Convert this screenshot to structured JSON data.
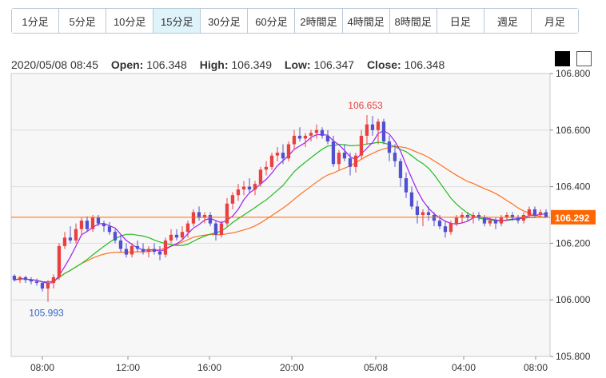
{
  "timeframes": [
    {
      "label": "1分足",
      "active": false
    },
    {
      "label": "5分足",
      "active": false
    },
    {
      "label": "10分足",
      "active": false
    },
    {
      "label": "15分足",
      "active": true
    },
    {
      "label": "30分足",
      "active": false
    },
    {
      "label": "60分足",
      "active": false
    },
    {
      "label": "2時間足",
      "active": false
    },
    {
      "label": "4時間足",
      "active": false
    },
    {
      "label": "8時間足",
      "active": false
    },
    {
      "label": "日足",
      "active": false
    },
    {
      "label": "週足",
      "active": false
    },
    {
      "label": "月足",
      "active": false
    }
  ],
  "ohlc": {
    "datetime": "2020/05/08 08:45",
    "open_label": "Open:",
    "open": "106.348",
    "high_label": "High:",
    "high": "106.349",
    "low_label": "Low:",
    "low": "106.347",
    "close_label": "Close:",
    "close": "106.348"
  },
  "theme": {
    "dark_label": "dark theme",
    "light_label": "light theme"
  },
  "colors": {
    "up": "#e84040",
    "down": "#5050d0",
    "ma_short": "#a020f0",
    "ma_mid": "#22bb22",
    "ma_long": "#ff7020",
    "price_line": "#ff6600",
    "price_label_bg": "#ff6600",
    "max_label": "#e84040",
    "min_label": "#3366cc"
  },
  "chart_data": {
    "type": "candlestick",
    "ylim": [
      105.8,
      106.8
    ],
    "y_ticks": [
      "106.800",
      "106.600",
      "106.400",
      "106.200",
      "106.000",
      "105.800"
    ],
    "x_ticks": [
      "08:00",
      "12:00",
      "16:00",
      "20:00",
      "05/08",
      "04:00",
      "08:00"
    ],
    "current_price": "106.292",
    "max_label": "106.653",
    "min_label": "105.993",
    "candles": [
      [
        106.085,
        106.09,
        106.065,
        106.07
      ],
      [
        106.07,
        106.085,
        106.06,
        106.08
      ],
      [
        106.08,
        106.085,
        106.06,
        106.07
      ],
      [
        106.07,
        106.08,
        106.055,
        106.065
      ],
      [
        106.065,
        106.075,
        106.05,
        106.06
      ],
      [
        106.06,
        106.065,
        106.03,
        106.04
      ],
      [
        106.04,
        106.07,
        105.993,
        106.06
      ],
      [
        106.06,
        106.09,
        106.04,
        106.08
      ],
      [
        106.08,
        106.2,
        106.07,
        106.19
      ],
      [
        106.19,
        106.24,
        106.18,
        106.22
      ],
      [
        106.22,
        106.26,
        106.2,
        106.21
      ],
      [
        106.21,
        106.27,
        106.2,
        106.25
      ],
      [
        106.25,
        106.29,
        106.23,
        106.28
      ],
      [
        106.28,
        106.295,
        106.24,
        106.25
      ],
      [
        106.25,
        106.3,
        106.24,
        106.29
      ],
      [
        106.29,
        106.3,
        106.26,
        106.27
      ],
      [
        106.27,
        106.28,
        106.24,
        106.26
      ],
      [
        106.26,
        106.275,
        106.23,
        106.24
      ],
      [
        106.24,
        106.25,
        106.2,
        106.21
      ],
      [
        106.21,
        106.23,
        106.17,
        106.18
      ],
      [
        106.18,
        106.2,
        106.15,
        106.16
      ],
      [
        106.16,
        106.2,
        106.15,
        106.19
      ],
      [
        106.19,
        106.21,
        106.17,
        106.18
      ],
      [
        106.18,
        106.2,
        106.16,
        106.17
      ],
      [
        106.17,
        106.19,
        106.15,
        106.18
      ],
      [
        106.18,
        106.2,
        106.16,
        106.17
      ],
      [
        106.17,
        106.19,
        106.14,
        106.16
      ],
      [
        106.16,
        106.22,
        106.15,
        106.21
      ],
      [
        106.21,
        106.25,
        106.2,
        106.23
      ],
      [
        106.23,
        106.25,
        106.21,
        106.22
      ],
      [
        106.22,
        106.26,
        106.21,
        106.24
      ],
      [
        106.24,
        106.28,
        106.22,
        106.27
      ],
      [
        106.27,
        106.32,
        106.26,
        106.31
      ],
      [
        106.31,
        106.33,
        106.28,
        106.29
      ],
      [
        106.29,
        106.31,
        106.27,
        106.3
      ],
      [
        106.3,
        106.31,
        106.26,
        106.27
      ],
      [
        106.27,
        106.28,
        106.21,
        106.23
      ],
      [
        106.23,
        106.28,
        106.22,
        106.27
      ],
      [
        106.27,
        106.36,
        106.26,
        106.34
      ],
      [
        106.34,
        106.38,
        106.32,
        106.37
      ],
      [
        106.37,
        106.41,
        106.35,
        106.39
      ],
      [
        106.39,
        106.42,
        106.37,
        106.4
      ],
      [
        106.4,
        106.43,
        106.38,
        106.39
      ],
      [
        106.39,
        106.42,
        106.37,
        106.41
      ],
      [
        106.41,
        106.47,
        106.4,
        106.46
      ],
      [
        106.46,
        106.49,
        106.44,
        106.47
      ],
      [
        106.47,
        106.52,
        106.46,
        106.51
      ],
      [
        106.51,
        106.54,
        106.49,
        106.52
      ],
      [
        106.52,
        106.55,
        106.48,
        106.5
      ],
      [
        106.5,
        106.56,
        106.49,
        106.55
      ],
      [
        106.55,
        106.6,
        106.53,
        106.58
      ],
      [
        106.58,
        106.61,
        106.56,
        106.57
      ],
      [
        106.57,
        106.59,
        106.54,
        106.58
      ],
      [
        106.58,
        106.6,
        106.56,
        106.59
      ],
      [
        106.59,
        106.62,
        106.57,
        106.6
      ],
      [
        106.6,
        106.61,
        106.57,
        106.58
      ],
      [
        106.58,
        106.6,
        106.55,
        106.56
      ],
      [
        106.56,
        106.58,
        106.47,
        106.48
      ],
      [
        106.48,
        106.53,
        106.46,
        106.52
      ],
      [
        106.52,
        106.55,
        106.49,
        106.5
      ],
      [
        106.5,
        106.52,
        106.44,
        106.47
      ],
      [
        106.47,
        106.52,
        106.45,
        106.51
      ],
      [
        106.51,
        106.6,
        106.5,
        106.58
      ],
      [
        106.58,
        106.653,
        106.55,
        106.62
      ],
      [
        106.62,
        106.65,
        106.58,
        106.6
      ],
      [
        106.6,
        106.64,
        106.55,
        106.63
      ],
      [
        106.63,
        106.64,
        106.55,
        106.56
      ],
      [
        106.56,
        106.58,
        106.49,
        106.52
      ],
      [
        106.52,
        106.55,
        106.47,
        106.49
      ],
      [
        106.49,
        106.5,
        106.4,
        106.43
      ],
      [
        106.43,
        106.45,
        106.36,
        106.38
      ],
      [
        106.38,
        106.4,
        106.32,
        106.33
      ],
      [
        106.33,
        106.35,
        106.27,
        106.3
      ],
      [
        106.3,
        106.32,
        106.26,
        106.31
      ],
      [
        106.31,
        106.33,
        106.28,
        106.3
      ],
      [
        106.3,
        106.31,
        106.26,
        106.28
      ],
      [
        106.28,
        106.3,
        106.25,
        106.26
      ],
      [
        106.26,
        106.28,
        106.22,
        106.24
      ],
      [
        106.24,
        106.28,
        106.23,
        106.27
      ],
      [
        106.27,
        106.3,
        106.26,
        106.29
      ],
      [
        106.29,
        106.31,
        106.27,
        106.3
      ],
      [
        106.3,
        106.31,
        106.28,
        106.29
      ],
      [
        106.29,
        106.31,
        106.27,
        106.3
      ],
      [
        106.3,
        106.31,
        106.28,
        106.29
      ],
      [
        106.29,
        106.3,
        106.26,
        106.27
      ],
      [
        106.27,
        106.29,
        106.26,
        106.28
      ],
      [
        106.28,
        106.29,
        106.25,
        106.27
      ],
      [
        106.27,
        106.3,
        106.26,
        106.29
      ],
      [
        106.29,
        106.31,
        106.28,
        106.3
      ],
      [
        106.3,
        106.31,
        106.28,
        106.29
      ],
      [
        106.29,
        106.3,
        106.27,
        106.28
      ],
      [
        106.28,
        106.31,
        106.27,
        106.3
      ],
      [
        106.3,
        106.33,
        106.29,
        106.32
      ],
      [
        106.32,
        106.33,
        106.29,
        106.3
      ],
      [
        106.3,
        106.32,
        106.29,
        106.31
      ],
      [
        106.31,
        106.32,
        106.29,
        106.292
      ]
    ],
    "ma_periods": [
      5,
      13,
      25
    ]
  }
}
